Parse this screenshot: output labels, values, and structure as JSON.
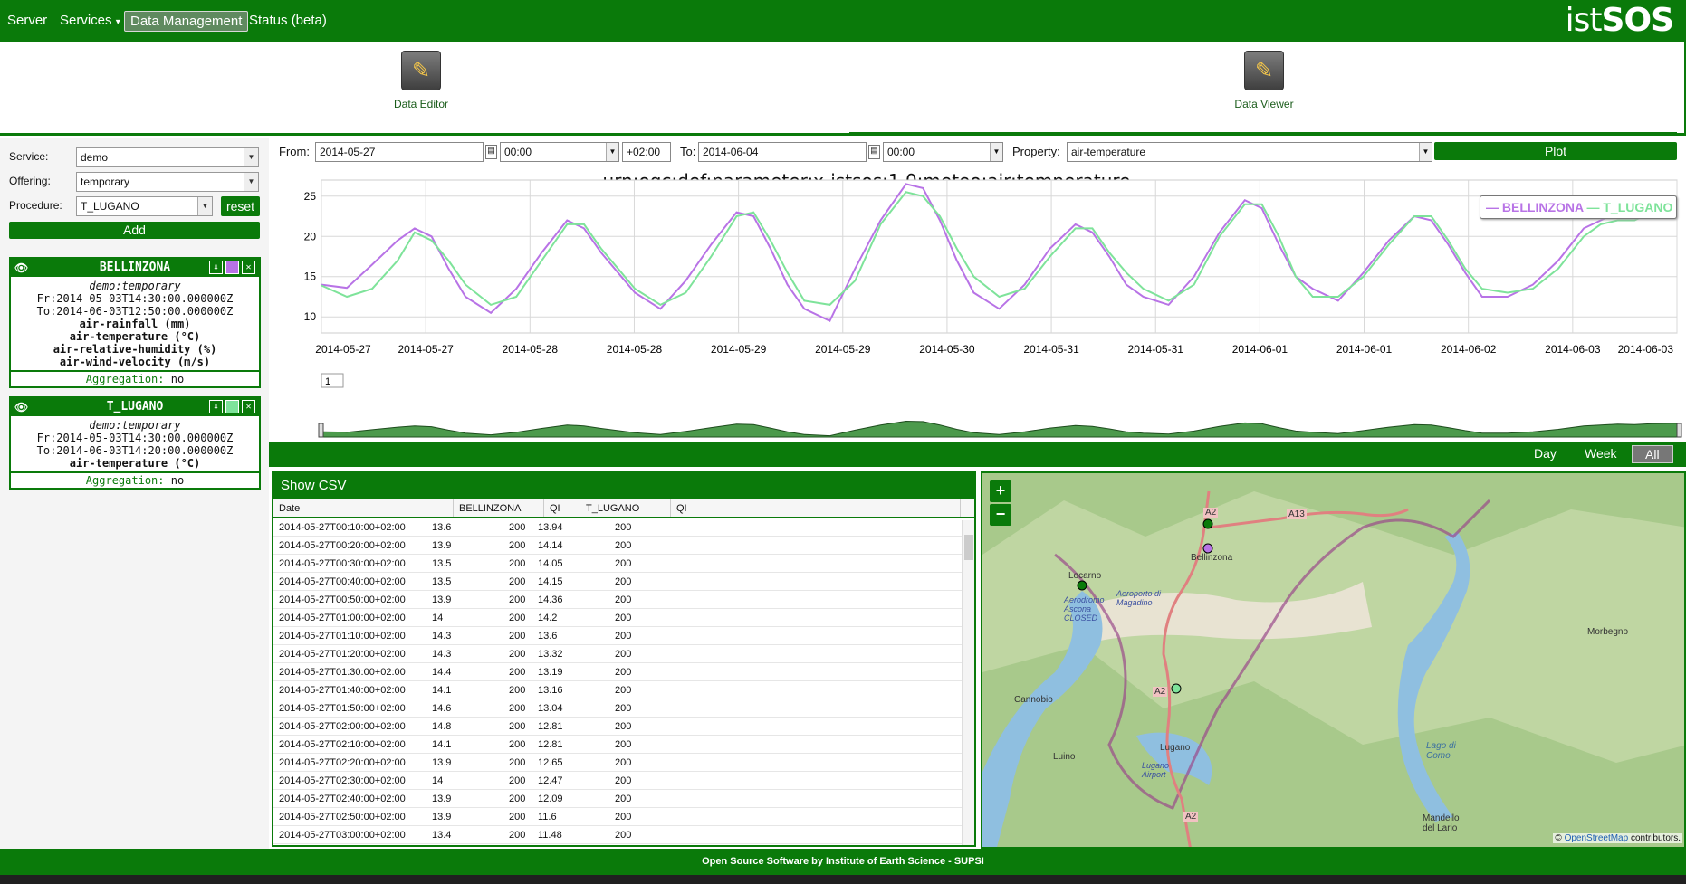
{
  "nav": {
    "items": [
      "Server",
      "Services",
      "Data Management",
      "Status (beta)"
    ],
    "services_caret": "▾",
    "active": "Data Management",
    "logo_light": "ist",
    "logo_bold": "SOS"
  },
  "toolbar": {
    "data_editor": "Data Editor",
    "data_viewer": "Data Viewer"
  },
  "left": {
    "service_label": "Service:",
    "service_value": "demo",
    "offering_label": "Offering:",
    "offering_value": "temporary",
    "procedure_label": "Procedure:",
    "procedure_value": "T_LUGANO",
    "reset_label": "reset",
    "add_label": "Add",
    "cards": [
      {
        "name": "BELLINZONA",
        "color": "#b873e6",
        "offering": "demo:temporary",
        "from": "Fr:2014-05-03T14:30:00.000000Z",
        "to": "To:2014-06-03T12:50:00.000000Z",
        "props": [
          "air-rainfall (mm)",
          "air-temperature (°C)",
          "air-relative-humidity (%)",
          "air-wind-velocity (m/s)"
        ],
        "agg_key": "Aggregation:",
        "agg_val": "no"
      },
      {
        "name": "T_LUGANO",
        "color": "#7ee39a",
        "offering": "demo:temporary",
        "from": "Fr:2014-05-03T14:30:00.000000Z",
        "to": "To:2014-06-03T14:20:00.000000Z",
        "props": [
          "air-temperature (°C)"
        ],
        "agg_key": "Aggregation:",
        "agg_val": "no"
      }
    ]
  },
  "controls": {
    "from_label": "From:",
    "from_date": "2014-05-27",
    "from_time": "00:00",
    "tz": "+02:00",
    "to_label": "To:",
    "to_date": "2014-06-04",
    "to_time": "00:00",
    "property_label": "Property:",
    "property_value": "air-temperature",
    "plot_label": "Plot"
  },
  "chart_data": {
    "type": "line",
    "title": "urn:ogc:def:parameter:x-istsos:1.0:meteo:air:temperature",
    "ylim": [
      8,
      27
    ],
    "yticks": [
      10,
      15,
      20,
      25
    ],
    "xlim": [
      0,
      8
    ],
    "xtick_labels": [
      "2014-05-27",
      "2014-05-27",
      "2014-05-28",
      "2014-05-28",
      "2014-05-29",
      "2014-05-29",
      "2014-05-30",
      "2014-05-31",
      "2014-05-31",
      "2014-06-01",
      "2014-06-01",
      "2014-06-02",
      "2014-06-03",
      "2014-06-03"
    ],
    "legend_position": "top-right",
    "grid": true,
    "series": [
      {
        "name": "BELLINZONA",
        "color": "#b873e6",
        "x": [
          0,
          0.15,
          0.3,
          0.45,
          0.55,
          0.65,
          0.75,
          0.85,
          1.0,
          1.15,
          1.3,
          1.45,
          1.55,
          1.65,
          1.75,
          1.85,
          2.0,
          2.15,
          2.3,
          2.45,
          2.55,
          2.65,
          2.75,
          2.85,
          3.0,
          3.15,
          3.3,
          3.45,
          3.55,
          3.65,
          3.75,
          3.85,
          4.0,
          4.15,
          4.3,
          4.45,
          4.55,
          4.65,
          4.75,
          4.85,
          5.0,
          5.15,
          5.3,
          5.45,
          5.55,
          5.65,
          5.75,
          5.85,
          6.0,
          6.15,
          6.3,
          6.45,
          6.55,
          6.65,
          6.75,
          6.85,
          7.0,
          7.15,
          7.3,
          7.45,
          7.55,
          7.65,
          7.75,
          7.85,
          8.0
        ],
        "values": [
          14.0,
          13.6,
          16.5,
          19.5,
          21.0,
          20.0,
          16.0,
          12.5,
          10.5,
          13.5,
          18.0,
          22.0,
          21.0,
          18.0,
          15.5,
          13.0,
          11.0,
          14.5,
          19.0,
          23.0,
          22.5,
          18.5,
          14.0,
          11.0,
          9.5,
          16.0,
          22.0,
          26.5,
          26.0,
          22.0,
          17.0,
          13.0,
          11.0,
          14.0,
          18.5,
          21.5,
          20.5,
          17.5,
          14.0,
          12.5,
          11.5,
          15.0,
          20.5,
          24.5,
          23.5,
          19.0,
          15.0,
          13.5,
          12.0,
          15.5,
          19.5,
          22.5,
          22.0,
          19.0,
          15.5,
          12.5,
          12.5,
          14.0,
          17.0,
          21.0,
          22.0,
          23.0,
          22.5,
          23.5,
          24.0
        ]
      },
      {
        "name": "T_LUGANO",
        "color": "#7ee39a",
        "x": [
          0,
          0.15,
          0.3,
          0.45,
          0.55,
          0.65,
          0.75,
          0.85,
          1.0,
          1.15,
          1.3,
          1.45,
          1.55,
          1.65,
          1.75,
          1.85,
          2.0,
          2.15,
          2.3,
          2.45,
          2.55,
          2.65,
          2.75,
          2.85,
          3.0,
          3.15,
          3.3,
          3.45,
          3.55,
          3.65,
          3.75,
          3.85,
          4.0,
          4.15,
          4.3,
          4.45,
          4.55,
          4.65,
          4.75,
          4.85,
          5.0,
          5.15,
          5.3,
          5.45,
          5.55,
          5.65,
          5.75,
          5.85,
          6.0,
          6.15,
          6.3,
          6.45,
          6.55,
          6.65,
          6.75,
          6.85,
          7.0,
          7.15,
          7.3,
          7.45,
          7.55,
          7.65,
          7.75,
          7.85,
          8.0
        ],
        "values": [
          13.9,
          12.5,
          13.5,
          17.0,
          20.5,
          19.5,
          17.0,
          14.0,
          11.5,
          12.5,
          17.0,
          21.5,
          21.5,
          18.5,
          16.0,
          13.5,
          11.5,
          13.0,
          17.5,
          22.5,
          23.0,
          19.5,
          15.5,
          12.0,
          11.5,
          14.5,
          21.5,
          25.5,
          25.0,
          22.5,
          18.5,
          15.0,
          12.5,
          13.5,
          17.5,
          21.0,
          21.0,
          18.0,
          15.5,
          13.5,
          12.0,
          14.0,
          20.0,
          24.0,
          24.0,
          20.0,
          15.0,
          12.5,
          12.5,
          15.0,
          19.0,
          22.5,
          22.5,
          19.5,
          16.0,
          13.5,
          13.0,
          13.5,
          16.0,
          20.0,
          21.5,
          22.0,
          22.0,
          23.0,
          24.0
        ]
      }
    ]
  },
  "chart_misc": {
    "page_box": "1"
  },
  "range": {
    "day": "Day",
    "week": "Week",
    "all": "All"
  },
  "table": {
    "title": "Show CSV",
    "columns": [
      "Date",
      "BELLINZONA",
      "QI",
      "T_LUGANO",
      "QI"
    ],
    "rows": [
      [
        "2014-05-27T00:10:00+02:00",
        "13.6",
        "200",
        "13.94",
        "200"
      ],
      [
        "2014-05-27T00:20:00+02:00",
        "13.9",
        "200",
        "14.14",
        "200"
      ],
      [
        "2014-05-27T00:30:00+02:00",
        "13.5",
        "200",
        "14.05",
        "200"
      ],
      [
        "2014-05-27T00:40:00+02:00",
        "13.5",
        "200",
        "14.15",
        "200"
      ],
      [
        "2014-05-27T00:50:00+02:00",
        "13.9",
        "200",
        "14.36",
        "200"
      ],
      [
        "2014-05-27T01:00:00+02:00",
        "14",
        "200",
        "14.2",
        "200"
      ],
      [
        "2014-05-27T01:10:00+02:00",
        "14.3",
        "200",
        "13.6",
        "200"
      ],
      [
        "2014-05-27T01:20:00+02:00",
        "14.3",
        "200",
        "13.32",
        "200"
      ],
      [
        "2014-05-27T01:30:00+02:00",
        "14.4",
        "200",
        "13.19",
        "200"
      ],
      [
        "2014-05-27T01:40:00+02:00",
        "14.1",
        "200",
        "13.16",
        "200"
      ],
      [
        "2014-05-27T01:50:00+02:00",
        "14.6",
        "200",
        "13.04",
        "200"
      ],
      [
        "2014-05-27T02:00:00+02:00",
        "14.8",
        "200",
        "12.81",
        "200"
      ],
      [
        "2014-05-27T02:10:00+02:00",
        "14.1",
        "200",
        "12.81",
        "200"
      ],
      [
        "2014-05-27T02:20:00+02:00",
        "13.9",
        "200",
        "12.65",
        "200"
      ],
      [
        "2014-05-27T02:30:00+02:00",
        "14",
        "200",
        "12.47",
        "200"
      ],
      [
        "2014-05-27T02:40:00+02:00",
        "13.9",
        "200",
        "12.09",
        "200"
      ],
      [
        "2014-05-27T02:50:00+02:00",
        "13.9",
        "200",
        "11.6",
        "200"
      ],
      [
        "2014-05-27T03:00:00+02:00",
        "13.4",
        "200",
        "11.48",
        "200"
      ]
    ]
  },
  "map": {
    "zoom_in": "+",
    "zoom_out": "−",
    "labels": [
      "A13",
      "A2",
      "Bellinzona",
      "Locarno",
      "Aeroporto di Magadino",
      "Aerodromo Ascona CLOSED",
      "Cannobio",
      "Morbegno",
      "A2",
      "Lugano",
      "Lugano Airport",
      "Luino",
      "Lago di Como",
      "Mandello del Lario",
      "A2"
    ],
    "attrib_prefix": "©",
    "attrib_link": "OpenStreetMap",
    "attrib_suffix": "contributors."
  },
  "footer": {
    "text": "Open Source Software by Institute of Earth Science - SUPSI"
  }
}
